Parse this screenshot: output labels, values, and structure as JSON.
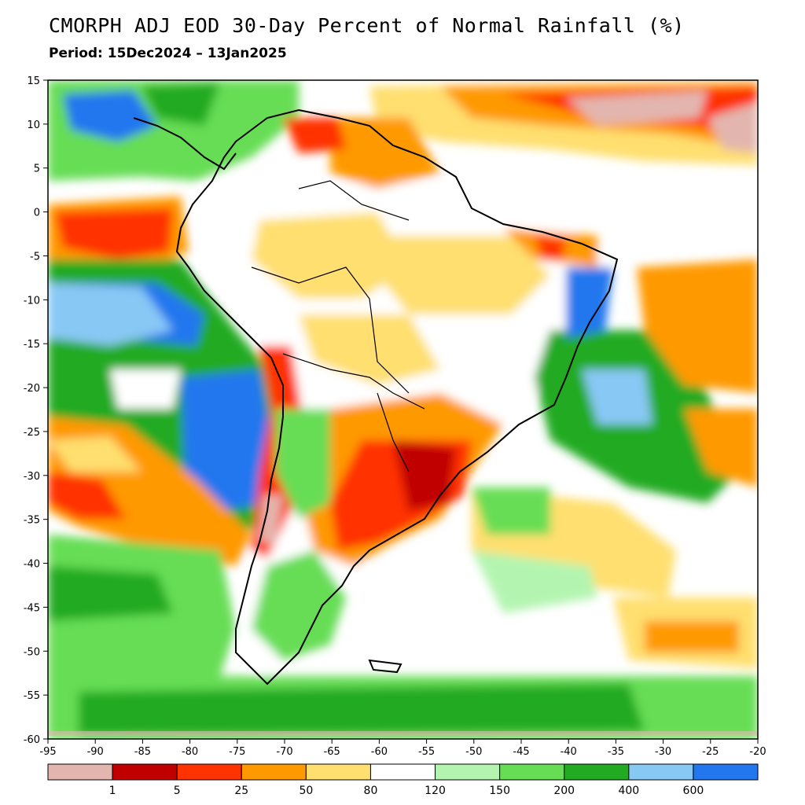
{
  "header": {
    "title": "CMORPH ADJ EOD 30-Day Percent of Normal Rainfall (%)",
    "period": "Period: 15Dec2024 – 13Jan2025"
  },
  "map": {
    "lon_range": [
      -95,
      -20
    ],
    "lat_range": [
      -60,
      15
    ],
    "lon_ticks": [
      "-95",
      "-90",
      "-85",
      "-80",
      "-75",
      "-70",
      "-65",
      "-60",
      "-55",
      "-50",
      "-45",
      "-40",
      "-35",
      "-30",
      "-25",
      "-20"
    ],
    "lat_ticks": [
      "15",
      "10",
      "5",
      "0",
      "-5",
      "-10",
      "-15",
      "-20",
      "-25",
      "-30",
      "-35",
      "-40",
      "-45",
      "-50",
      "-55",
      "-60"
    ]
  },
  "legend": {
    "colors": [
      "#e2b6ae",
      "#c00000",
      "#ff3300",
      "#ff9900",
      "#ffdf6f",
      "#ffffff",
      "#b3f5b0",
      "#66dd55",
      "#22aa22",
      "#88c8f5",
      "#2277ee"
    ],
    "labels": [
      "1",
      "5",
      "25",
      "50",
      "80",
      "120",
      "150",
      "200",
      "400",
      "600"
    ]
  }
}
